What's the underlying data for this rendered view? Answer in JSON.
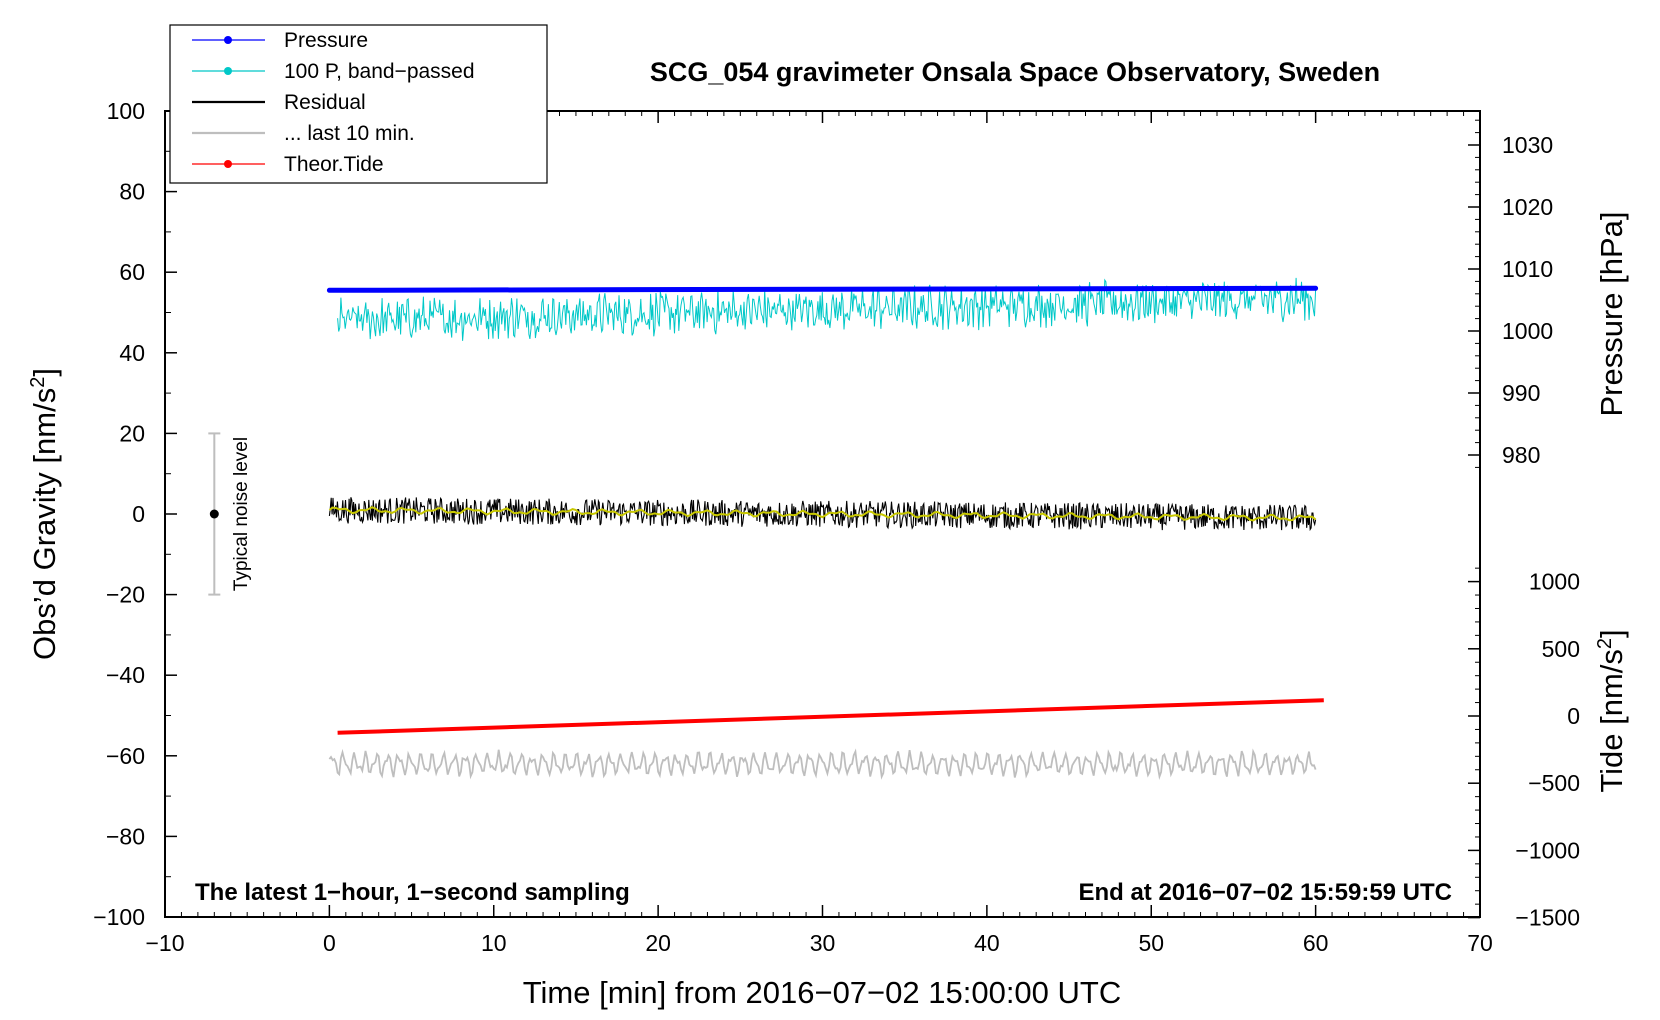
{
  "chart_data": {
    "type": "line",
    "title": "SCG_054 gravimeter Onsala Space Observatory, Sweden",
    "xlabel": "Time [min] from 2016−07−02 15:00:00 UTC",
    "ylabel_main": "Obs’d Gravity [nm/s",
    "ylabel_main_sup": "2",
    "ylabel_main_close": "]",
    "ylabel_pressure": "Pressure [hPa]",
    "ylabel_tide": "Tide [nm/s",
    "ylabel_tide_sup": "2",
    "ylabel_tide_close": "]",
    "xlim": [
      -10,
      70
    ],
    "ylim": [
      -100,
      100
    ],
    "x_ticks": [
      -10,
      0,
      10,
      20,
      30,
      40,
      50,
      60,
      70
    ],
    "x_tick_labels": [
      "−10",
      "0",
      "10",
      "20",
      "30",
      "40",
      "50",
      "60",
      "70"
    ],
    "y_ticks": [
      -100,
      -80,
      -60,
      -40,
      -20,
      0,
      20,
      40,
      60,
      80,
      100
    ],
    "y_tick_labels": [
      "−100",
      "−80",
      "−60",
      "−40",
      "−20",
      "0",
      "20",
      "40",
      "60",
      "80",
      "100"
    ],
    "pressure_ticks": [
      980,
      990,
      1000,
      1010,
      1020,
      1030
    ],
    "pressure_tick_labels": [
      "980",
      "990",
      "1000",
      "1010",
      "1020",
      "1030"
    ],
    "tide_ticks": [
      -1500,
      -1000,
      -500,
      0,
      500,
      1000
    ],
    "tide_tick_labels": [
      "−1500",
      "−1000",
      "−500",
      "0",
      "500",
      "1000"
    ],
    "note_left": "The latest 1−hour, 1−second sampling",
    "note_right": "End at 2016−07−02 15:59:59 UTC",
    "noise_label": "Typical noise level",
    "noise_bar": {
      "x": -7,
      "center": 0,
      "low": -20,
      "high": 20
    },
    "legend": [
      {
        "label": "Pressure",
        "color": "#0000ff",
        "marker": true
      },
      {
        "label": "100 P, band−passed",
        "color": "#00c8c8",
        "marker": true
      },
      {
        "label": "Residual",
        "color": "#000000",
        "marker": false
      },
      {
        "label": "... last 10 min.",
        "color": "#bebebe",
        "marker": false
      },
      {
        "label": "Theor.Tide",
        "color": "#ff0000",
        "marker": true
      }
    ],
    "series": [
      {
        "name": "Pressure",
        "color": "#0000ff",
        "x": [
          0,
          60
        ],
        "y": [
          55.5,
          56.0
        ]
      },
      {
        "name": "100 P, band−passed",
        "color": "#00c8c8",
        "x_range": [
          0.5,
          60
        ],
        "center_start": 48,
        "center_end": 53.5,
        "amplitude": 5
      },
      {
        "name": "Residual",
        "color": "#000000",
        "x_range": [
          0,
          60
        ],
        "center_start": 1,
        "center_end": -1,
        "amplitude": 3.5
      },
      {
        "name": "Residual smoothed",
        "color": "#c8c800",
        "x_range": [
          0,
          60
        ],
        "center_start": 1,
        "center_end": -1
      },
      {
        "name": "... last 10 min.",
        "color": "#bebebe",
        "x_range": [
          0,
          60
        ],
        "center": -62,
        "amplitude": 2.5
      },
      {
        "name": "Theor.Tide",
        "color": "#ff0000",
        "x": [
          0.5,
          60.5
        ],
        "y": [
          -54.3,
          -46.2
        ]
      }
    ]
  }
}
